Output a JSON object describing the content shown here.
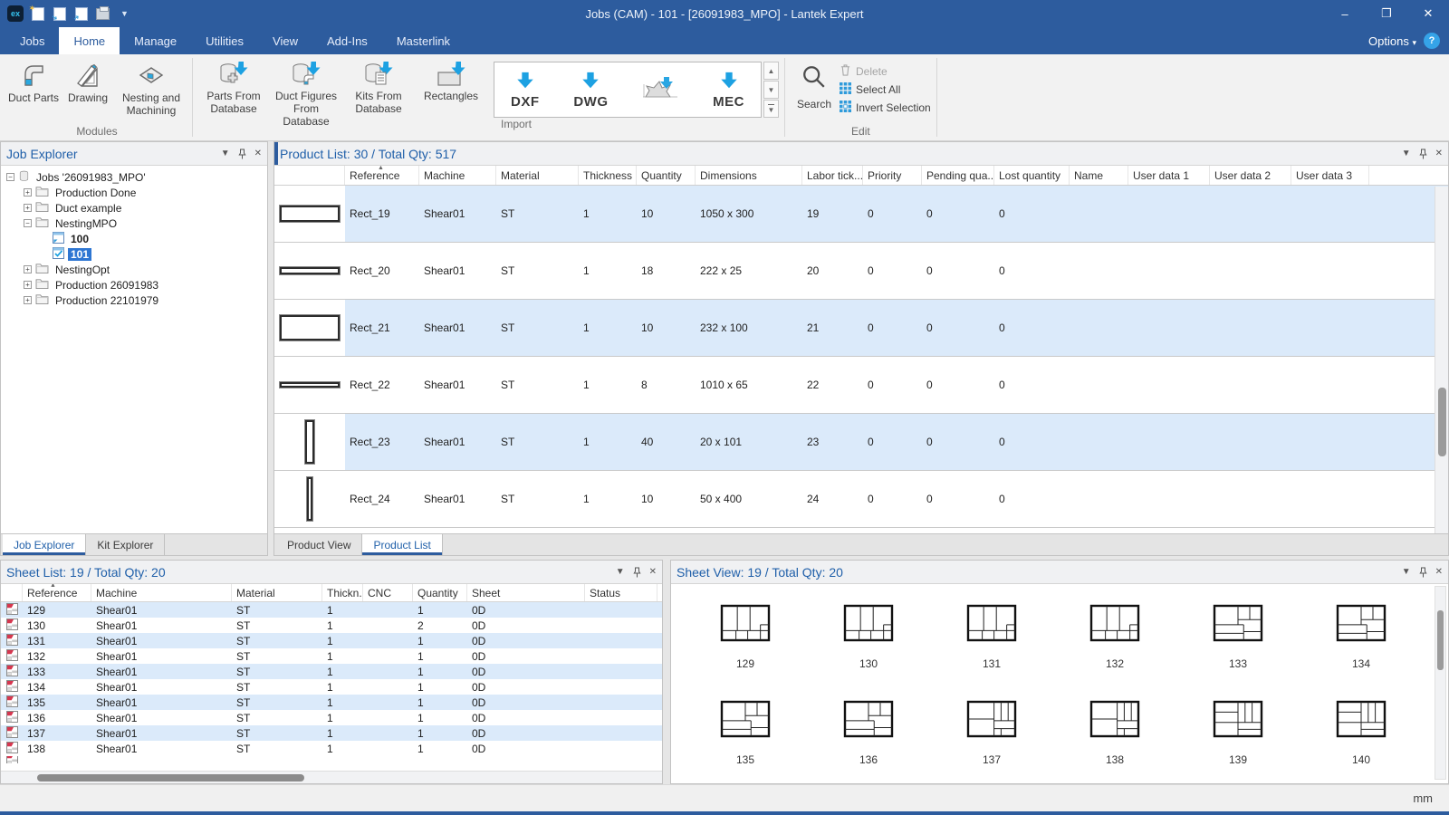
{
  "titlebar": {
    "title": "Jobs (CAM) - 101 - [26091983_MPO] - Lantek Expert",
    "quick_access_icons": [
      "app-logo",
      "new",
      "open",
      "import",
      "print",
      "customize-dropdown"
    ],
    "window_buttons": {
      "minimize": "–",
      "restore": "❐",
      "close": "✕"
    }
  },
  "menubar": {
    "tabs": [
      "Jobs",
      "Home",
      "Manage",
      "Utilities",
      "View",
      "Add-Ins",
      "Masterlink"
    ],
    "active_tab": "Home",
    "options_label": "Options",
    "help_label": "?"
  },
  "ribbon": {
    "modules": {
      "label": "Modules",
      "buttons": [
        {
          "label": "Duct Parts",
          "icon": "duct-parts"
        },
        {
          "label": "Drawing",
          "icon": "drawing"
        },
        {
          "label": "Nesting and Machining",
          "icon": "nesting-machining"
        }
      ]
    },
    "database": {
      "buttons": [
        {
          "label": "Parts From Database",
          "icon": "database-parts"
        },
        {
          "label": "Duct Figures From Database",
          "icon": "database-duct"
        },
        {
          "label": "Kits From Database",
          "icon": "database-kits"
        },
        {
          "label": "Rectangles",
          "icon": "rectangle-import"
        }
      ]
    },
    "import": {
      "label": "Import",
      "buttons": [
        {
          "label": "DXF",
          "icon": "download-arrow"
        },
        {
          "label": "DWG",
          "icon": "download-arrow"
        },
        {
          "label": "",
          "icon": "part-shape"
        },
        {
          "label": "MEC",
          "icon": "download-arrow"
        }
      ]
    },
    "edit": {
      "label": "Edit",
      "search_label": "Search",
      "items": [
        {
          "label": "Delete",
          "icon": "trash",
          "enabled": false
        },
        {
          "label": "Select All",
          "icon": "grid-select",
          "enabled": true
        },
        {
          "label": "Invert Selection",
          "icon": "grid-invert",
          "enabled": true
        }
      ]
    }
  },
  "job_explorer": {
    "title": "Job Explorer",
    "tree": [
      {
        "label": "Jobs '26091983_MPO'",
        "level": 0,
        "expander": "minus",
        "icon": "database",
        "bold": false,
        "selected": false
      },
      {
        "label": "Production Done",
        "level": 1,
        "expander": "plus",
        "icon": "folder",
        "bold": false,
        "selected": false
      },
      {
        "label": "Duct example",
        "level": 1,
        "expander": "plus",
        "icon": "folder",
        "bold": false,
        "selected": false
      },
      {
        "label": "NestingMPO",
        "level": 1,
        "expander": "minus",
        "icon": "folder",
        "bold": false,
        "selected": false
      },
      {
        "label": "100",
        "level": 2,
        "expander": "none",
        "icon": "sheet",
        "bold": true,
        "selected": false
      },
      {
        "label": "101",
        "level": 2,
        "expander": "none",
        "icon": "sheet-check",
        "bold": true,
        "selected": true
      },
      {
        "label": "NestingOpt",
        "level": 1,
        "expander": "plus",
        "icon": "folder",
        "bold": false,
        "selected": false
      },
      {
        "label": "Production 26091983",
        "level": 1,
        "expander": "plus",
        "icon": "folder",
        "bold": false,
        "selected": false
      },
      {
        "label": "Production 22101979",
        "level": 1,
        "expander": "plus",
        "icon": "folder",
        "bold": false,
        "selected": false
      }
    ]
  },
  "explorer_tabs": {
    "tabs": [
      "Job Explorer",
      "Kit Explorer"
    ],
    "active": "Job Explorer"
  },
  "product_panel": {
    "title": "Product List: 30 / Total Qty: 517",
    "columns": [
      "Reference",
      "Machine",
      "Material",
      "Thickness",
      "Quantity",
      "Dimensions",
      "Labor tick...",
      "Priority",
      "Pending qua...",
      "Lost quantity",
      "Name",
      "User data 1",
      "User data 2",
      "User data 3"
    ],
    "sorted_column": "Reference",
    "rows": [
      {
        "reference": "Rect_19",
        "machine": "Shear01",
        "material": "ST",
        "thickness": "1",
        "quantity": "10",
        "dimensions": "1050 x 300",
        "labor_ticket": "19",
        "priority": "0",
        "pending_quantity": "0",
        "lost_quantity": "0",
        "name": "",
        "user_data_1": "",
        "user_data_2": "",
        "user_data_3": ""
      },
      {
        "reference": "Rect_20",
        "machine": "Shear01",
        "material": "ST",
        "thickness": "1",
        "quantity": "18",
        "dimensions": "222 x 25",
        "labor_ticket": "20",
        "priority": "0",
        "pending_quantity": "0",
        "lost_quantity": "0",
        "name": "",
        "user_data_1": "",
        "user_data_2": "",
        "user_data_3": ""
      },
      {
        "reference": "Rect_21",
        "machine": "Shear01",
        "material": "ST",
        "thickness": "1",
        "quantity": "10",
        "dimensions": "232 x 100",
        "labor_ticket": "21",
        "priority": "0",
        "pending_quantity": "0",
        "lost_quantity": "0",
        "name": "",
        "user_data_1": "",
        "user_data_2": "",
        "user_data_3": ""
      },
      {
        "reference": "Rect_22",
        "machine": "Shear01",
        "material": "ST",
        "thickness": "1",
        "quantity": "8",
        "dimensions": "1010 x 65",
        "labor_ticket": "22",
        "priority": "0",
        "pending_quantity": "0",
        "lost_quantity": "0",
        "name": "",
        "user_data_1": "",
        "user_data_2": "",
        "user_data_3": ""
      },
      {
        "reference": "Rect_23",
        "machine": "Shear01",
        "material": "ST",
        "thickness": "1",
        "quantity": "40",
        "dimensions": "20 x 101",
        "labor_ticket": "23",
        "priority": "0",
        "pending_quantity": "0",
        "lost_quantity": "0",
        "name": "",
        "user_data_1": "",
        "user_data_2": "",
        "user_data_3": ""
      },
      {
        "reference": "Rect_24",
        "machine": "Shear01",
        "material": "ST",
        "thickness": "1",
        "quantity": "10",
        "dimensions": "50 x 400",
        "labor_ticket": "24",
        "priority": "0",
        "pending_quantity": "0",
        "lost_quantity": "0",
        "name": "",
        "user_data_1": "",
        "user_data_2": "",
        "user_data_3": ""
      }
    ]
  },
  "product_tabs": {
    "tabs": [
      "Product View",
      "Product List"
    ],
    "active": "Product List"
  },
  "sheet_list": {
    "title": "Sheet List: 19 / Total Qty: 20",
    "columns": [
      "Reference",
      "Machine",
      "Material",
      "Thickn...",
      "CNC",
      "Quantity",
      "Sheet",
      "Status"
    ],
    "sorted_column": "Reference",
    "rows": [
      {
        "reference": "129",
        "machine": "Shear01",
        "material": "ST",
        "thickness": "1",
        "cnc": "",
        "quantity": "1",
        "sheet": "0D",
        "status": ""
      },
      {
        "reference": "130",
        "machine": "Shear01",
        "material": "ST",
        "thickness": "1",
        "cnc": "",
        "quantity": "2",
        "sheet": "0D",
        "status": ""
      },
      {
        "reference": "131",
        "machine": "Shear01",
        "material": "ST",
        "thickness": "1",
        "cnc": "",
        "quantity": "1",
        "sheet": "0D",
        "status": ""
      },
      {
        "reference": "132",
        "machine": "Shear01",
        "material": "ST",
        "thickness": "1",
        "cnc": "",
        "quantity": "1",
        "sheet": "0D",
        "status": ""
      },
      {
        "reference": "133",
        "machine": "Shear01",
        "material": "ST",
        "thickness": "1",
        "cnc": "",
        "quantity": "1",
        "sheet": "0D",
        "status": ""
      },
      {
        "reference": "134",
        "machine": "Shear01",
        "material": "ST",
        "thickness": "1",
        "cnc": "",
        "quantity": "1",
        "sheet": "0D",
        "status": ""
      },
      {
        "reference": "135",
        "machine": "Shear01",
        "material": "ST",
        "thickness": "1",
        "cnc": "",
        "quantity": "1",
        "sheet": "0D",
        "status": ""
      },
      {
        "reference": "136",
        "machine": "Shear01",
        "material": "ST",
        "thickness": "1",
        "cnc": "",
        "quantity": "1",
        "sheet": "0D",
        "status": ""
      },
      {
        "reference": "137",
        "machine": "Shear01",
        "material": "ST",
        "thickness": "1",
        "cnc": "",
        "quantity": "1",
        "sheet": "0D",
        "status": ""
      },
      {
        "reference": "138",
        "machine": "Shear01",
        "material": "ST",
        "thickness": "1",
        "cnc": "",
        "quantity": "1",
        "sheet": "0D",
        "status": ""
      }
    ]
  },
  "sheet_view": {
    "title": "Sheet View: 19 / Total Qty: 20",
    "sheets": [
      {
        "label": "129",
        "pattern": 0
      },
      {
        "label": "130",
        "pattern": 0
      },
      {
        "label": "131",
        "pattern": 0
      },
      {
        "label": "132",
        "pattern": 0
      },
      {
        "label": "133",
        "pattern": 1
      },
      {
        "label": "134",
        "pattern": 1
      },
      {
        "label": "135",
        "pattern": 1
      },
      {
        "label": "136",
        "pattern": 1
      },
      {
        "label": "137",
        "pattern": 2
      },
      {
        "label": "138",
        "pattern": 2
      },
      {
        "label": "139",
        "pattern": 3
      },
      {
        "label": "140",
        "pattern": 3
      }
    ]
  },
  "statusbar": {
    "unit": "mm"
  },
  "colors": {
    "titlebar": "#2d5c9e",
    "accent_blue": "#1da1e2",
    "selection": "#2e76d2",
    "row_stripe": "#dbeafa",
    "panel_title": "#1f5fa9"
  }
}
